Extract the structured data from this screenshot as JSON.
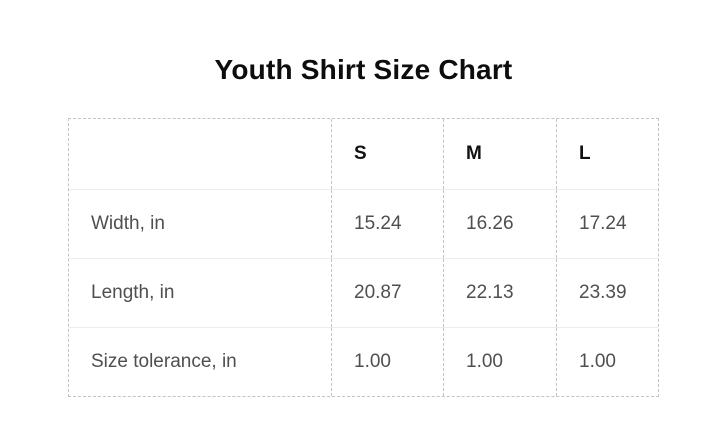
{
  "page": {
    "title": "Youth Shirt Size Chart"
  },
  "chart_data": {
    "type": "table",
    "title": "Youth Shirt Size Chart",
    "columns": [
      "",
      "S",
      "M",
      "L"
    ],
    "rows": [
      {
        "label": "Width, in",
        "values": [
          "15.24",
          "16.26",
          "17.24"
        ]
      },
      {
        "label": "Length, in",
        "values": [
          "20.87",
          "22.13",
          "23.39"
        ]
      },
      {
        "label": "Size tolerance, in",
        "values": [
          "1.00",
          "1.00",
          "1.00"
        ]
      }
    ]
  },
  "colors": {
    "title_text": "#0d0d0d",
    "header_text": "#111111",
    "body_text": "#4f4f4f",
    "dashed_border": "#c3c3c3",
    "row_divider": "#ececec",
    "background": "#ffffff"
  }
}
